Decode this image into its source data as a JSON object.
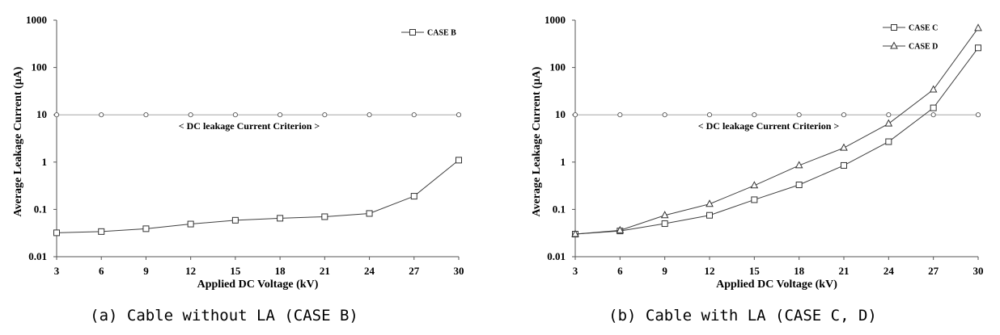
{
  "chart_data": [
    {
      "type": "line",
      "caption": "(a) Cable without LA (CASE B)",
      "xlabel": "Applied DC Voltage (kV)",
      "ylabel": "Average Leakage Current  (μA)",
      "x": [
        3,
        6,
        9,
        12,
        15,
        18,
        21,
        24,
        27,
        30
      ],
      "x_tick_labels": [
        "3",
        "6",
        "9",
        "12",
        "15",
        "18",
        "21",
        "24",
        "27",
        "30"
      ],
      "xlim": [
        3,
        30
      ],
      "yscale": "log",
      "ylim": [
        0.01,
        1000
      ],
      "y_tick_labels": [
        "0.01",
        "0.1",
        "1",
        "10",
        "100",
        "1000"
      ],
      "grid": false,
      "legend_position": "top-right",
      "series": [
        {
          "name": "CASE  B",
          "marker": "square",
          "color": "#404040",
          "values": [
            0.032,
            0.034,
            0.039,
            0.049,
            0.059,
            0.065,
            0.07,
            0.082,
            0.19,
            1.1
          ]
        }
      ],
      "reference_line": {
        "label": "< DC leakage Current  Criterion  >",
        "value": 10,
        "marker": "circle",
        "color": "#a6a6a6"
      }
    },
    {
      "type": "line",
      "caption": "(b) Cable with LA (CASE C, D)",
      "xlabel": "Applied DC Voltage (kV)",
      "ylabel": "Average Leakage Current  (μA)",
      "x": [
        3,
        6,
        9,
        12,
        15,
        18,
        21,
        24,
        27,
        30
      ],
      "x_tick_labels": [
        "3",
        "6",
        "9",
        "12",
        "15",
        "18",
        "21",
        "24",
        "27",
        "30"
      ],
      "xlim": [
        3,
        30
      ],
      "yscale": "log",
      "ylim": [
        0.01,
        1000
      ],
      "y_tick_labels": [
        "0.01",
        "0.1",
        "1",
        "10",
        "100",
        "1000"
      ],
      "grid": false,
      "legend_position": "top-right",
      "series": [
        {
          "name": "CASE  C",
          "marker": "square",
          "color": "#404040",
          "values": [
            0.03,
            0.035,
            0.05,
            0.075,
            0.16,
            0.33,
            0.85,
            2.7,
            14,
            260
          ]
        },
        {
          "name": "CASE  D",
          "marker": "triangle",
          "color": "#404040",
          "values": [
            0.03,
            0.036,
            0.075,
            0.13,
            0.32,
            0.85,
            2.0,
            6.5,
            34,
            680
          ]
        }
      ],
      "reference_line": {
        "label": "< DC leakage Current  Criterion  >",
        "value": 10,
        "marker": "circle",
        "color": "#a6a6a6"
      }
    }
  ]
}
